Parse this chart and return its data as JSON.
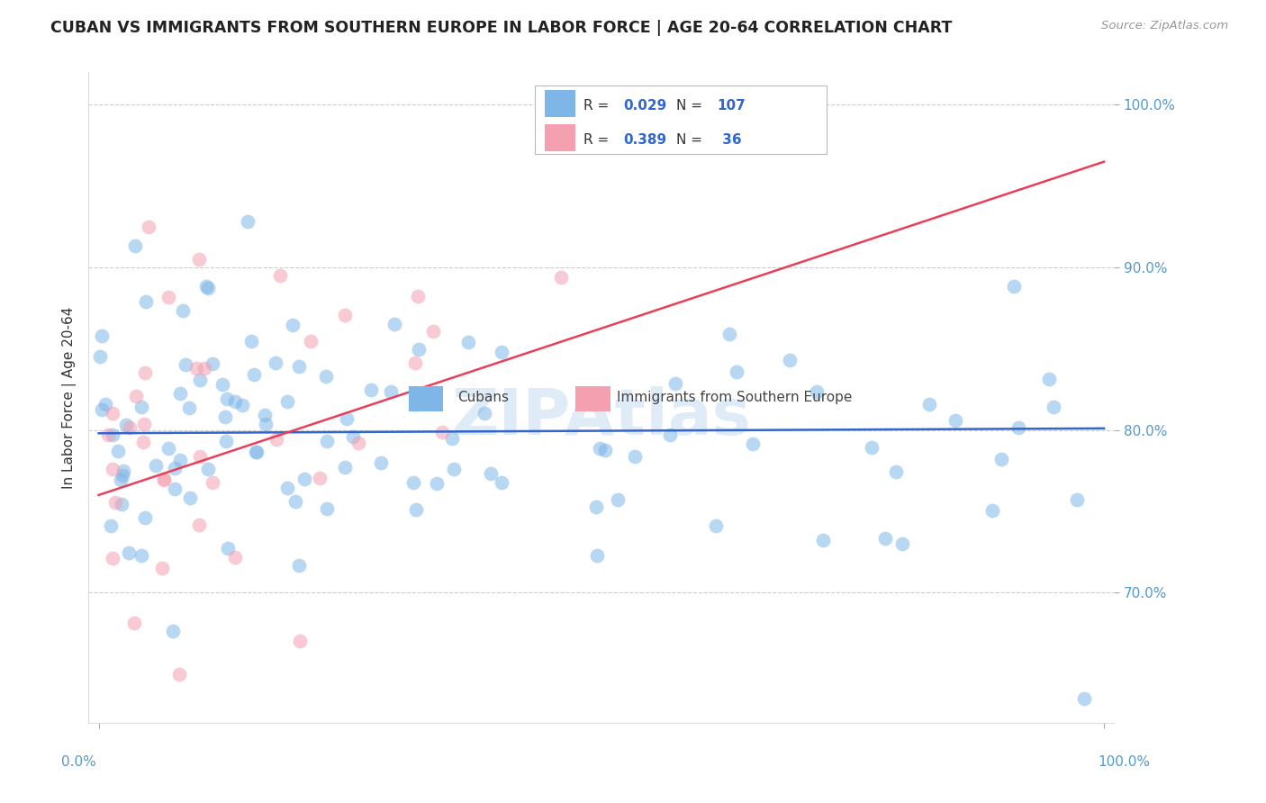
{
  "title": "CUBAN VS IMMIGRANTS FROM SOUTHERN EUROPE IN LABOR FORCE | AGE 20-64 CORRELATION CHART",
  "source": "Source: ZipAtlas.com",
  "ylabel": "In Labor Force | Age 20-64",
  "y_ticks": [
    70.0,
    80.0,
    90.0,
    100.0
  ],
  "y_tick_labels": [
    "70.0%",
    "80.0%",
    "90.0%",
    "100.0%"
  ],
  "xlim": [
    0.0,
    100.0
  ],
  "ylim": [
    62.0,
    102.0
  ],
  "R_cubans": 0.029,
  "N_cubans": 107,
  "R_southern": 0.389,
  "N_southern": 36,
  "cubans_color": "#7EB6E8",
  "southern_color": "#F4A0B0",
  "trendline_cubans_color": "#3366CC",
  "trendline_southern_color": "#E8405A",
  "watermark": "ZIPAtlas",
  "legend_label_cubans": "Cubans",
  "legend_label_southern": "Immigrants from Southern Europe",
  "cubans_trendline": [
    79.8,
    80.1
  ],
  "southern_trendline_x0": 0,
  "southern_trendline_x1": 100,
  "southern_trendline_y0": 76.0,
  "southern_trendline_y1": 96.5
}
